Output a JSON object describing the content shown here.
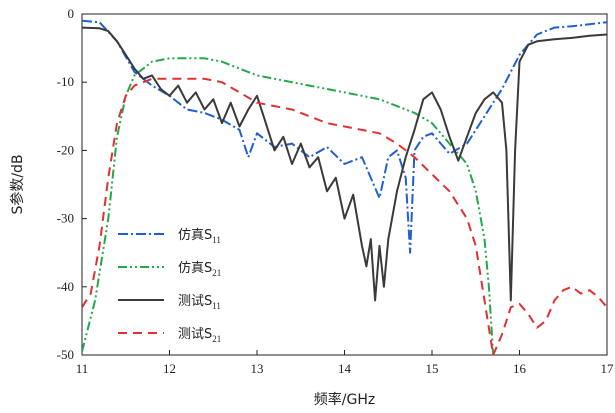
{
  "chart_data": {
    "type": "line",
    "xlabel": "频率/GHz",
    "ylabel": "S参数/dB",
    "xlim": [
      11,
      17
    ],
    "ylim": [
      -50,
      0
    ],
    "xticks": [
      "11",
      "12",
      "13",
      "14",
      "15",
      "16",
      "17"
    ],
    "yticks": [
      "0",
      "-10",
      "-20",
      "-30",
      "-40",
      "-50"
    ],
    "grid": false,
    "legend_position": "bottom-left",
    "series": [
      {
        "name": "仿真S11",
        "legend_main": "仿真S",
        "legend_sub": "11",
        "color": "#1f5fd0",
        "dash": "10,3,2,3",
        "x": [
          11.0,
          11.2,
          11.4,
          11.6,
          11.8,
          12.0,
          12.2,
          12.4,
          12.6,
          12.8,
          12.9,
          13.0,
          13.2,
          13.4,
          13.6,
          13.8,
          14.0,
          14.2,
          14.4,
          14.5,
          14.6,
          14.7,
          14.75,
          14.8,
          14.9,
          15.0,
          15.2,
          15.4,
          15.6,
          15.8,
          16.0,
          16.2,
          16.4,
          16.6,
          16.8,
          17.0
        ],
        "y": [
          -1.0,
          -1.2,
          -4.0,
          -8.5,
          -10.5,
          -12.0,
          -14.0,
          -14.5,
          -15.5,
          -17.0,
          -21.0,
          -17.5,
          -19.5,
          -19.0,
          -21.0,
          -19.5,
          -22.0,
          -21.0,
          -27.0,
          -21.0,
          -20.0,
          -24.0,
          -35.0,
          -20.0,
          -18.0,
          -17.5,
          -20.5,
          -19.0,
          -15.0,
          -11.0,
          -6.0,
          -3.0,
          -2.0,
          -1.8,
          -1.5,
          -1.2
        ]
      },
      {
        "name": "仿真S21",
        "legend_main": "仿真S",
        "legend_sub": "21",
        "color": "#22a84a",
        "dash": "9,3,2,3,2,3",
        "x": [
          11.0,
          11.15,
          11.3,
          11.4,
          11.5,
          11.6,
          11.8,
          12.0,
          12.2,
          12.4,
          12.6,
          12.8,
          13.0,
          13.2,
          13.4,
          13.6,
          13.8,
          14.0,
          14.2,
          14.4,
          14.6,
          14.8,
          15.0,
          15.2,
          15.4,
          15.5,
          15.6,
          15.65,
          15.7
        ],
        "y": [
          -49.5,
          -42.0,
          -30.0,
          -18.0,
          -12.0,
          -9.0,
          -7.0,
          -6.5,
          -6.5,
          -6.5,
          -7.0,
          -8.0,
          -9.0,
          -9.5,
          -10.0,
          -10.5,
          -11.0,
          -11.5,
          -12.0,
          -12.5,
          -13.5,
          -14.5,
          -16.0,
          -19.0,
          -22.0,
          -26.0,
          -33.0,
          -40.0,
          -50.0
        ]
      },
      {
        "name": "测试S11",
        "legend_main": "测试S",
        "legend_sub": "11",
        "color": "#3a3a3a",
        "dash": "",
        "x": [
          11.0,
          11.2,
          11.3,
          11.4,
          11.5,
          11.6,
          11.7,
          11.8,
          11.9,
          12.0,
          12.1,
          12.2,
          12.3,
          12.4,
          12.5,
          12.6,
          12.7,
          12.8,
          12.9,
          13.0,
          13.1,
          13.2,
          13.3,
          13.4,
          13.5,
          13.6,
          13.7,
          13.8,
          13.9,
          14.0,
          14.1,
          14.2,
          14.25,
          14.3,
          14.35,
          14.4,
          14.45,
          14.5,
          14.6,
          14.7,
          14.8,
          14.9,
          15.0,
          15.1,
          15.2,
          15.3,
          15.4,
          15.5,
          15.6,
          15.7,
          15.8,
          15.85,
          15.9,
          15.95,
          16.0,
          16.1,
          16.2,
          16.4,
          16.6,
          16.8,
          17.0
        ],
        "y": [
          -2.0,
          -2.1,
          -2.5,
          -4.0,
          -6.0,
          -8.0,
          -9.5,
          -9.0,
          -11.0,
          -12.0,
          -10.5,
          -13.0,
          -11.5,
          -14.0,
          -12.5,
          -16.0,
          -13.0,
          -16.5,
          -14.0,
          -12.0,
          -16.0,
          -20.0,
          -18.0,
          -22.0,
          -19.0,
          -22.5,
          -21.0,
          -26.0,
          -24.0,
          -30.0,
          -26.5,
          -34.0,
          -37.0,
          -33.0,
          -42.0,
          -34.0,
          -40.0,
          -33.0,
          -26.0,
          -21.0,
          -17.0,
          -12.5,
          -11.5,
          -14.0,
          -18.0,
          -21.5,
          -18.0,
          -14.5,
          -12.5,
          -11.5,
          -13.0,
          -20.0,
          -42.0,
          -20.0,
          -7.0,
          -4.5,
          -4.0,
          -3.7,
          -3.5,
          -3.2,
          -3.0
        ]
      },
      {
        "name": "测试S21",
        "legend_main": "测试S",
        "legend_sub": "21",
        "color": "#e03030",
        "dash": "9,6",
        "x": [
          11.0,
          11.1,
          11.2,
          11.3,
          11.4,
          11.5,
          11.6,
          11.8,
          12.0,
          12.2,
          12.4,
          12.6,
          12.8,
          13.0,
          13.2,
          13.4,
          13.6,
          13.8,
          14.0,
          14.2,
          14.4,
          14.6,
          14.8,
          15.0,
          15.2,
          15.4,
          15.5,
          15.6,
          15.7,
          15.8,
          15.9,
          16.0,
          16.1,
          16.2,
          16.3,
          16.4,
          16.5,
          16.6,
          16.7,
          16.8,
          16.9,
          17.0
        ],
        "y": [
          -43.0,
          -41.0,
          -34.0,
          -24.0,
          -16.0,
          -12.0,
          -10.5,
          -9.5,
          -9.5,
          -9.5,
          -9.5,
          -10.0,
          -11.5,
          -13.0,
          -13.5,
          -14.0,
          -15.0,
          -16.0,
          -16.5,
          -17.0,
          -17.5,
          -19.0,
          -21.0,
          -23.5,
          -26.0,
          -30.0,
          -34.0,
          -42.0,
          -50.0,
          -47.0,
          -43.0,
          -42.5,
          -44.0,
          -46.0,
          -45.0,
          -42.0,
          -40.5,
          -40.0,
          -41.0,
          -40.5,
          -41.5,
          -43.0
        ]
      }
    ]
  }
}
